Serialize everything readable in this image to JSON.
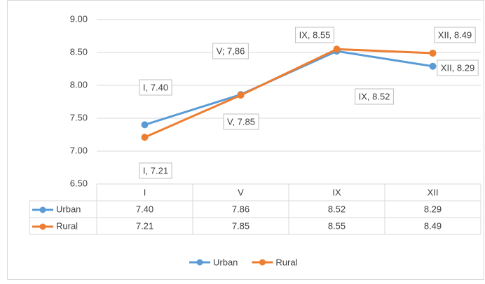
{
  "chart_data": {
    "type": "line",
    "categories": [
      "I",
      "V",
      "IX",
      "XII"
    ],
    "series": [
      {
        "name": "Urban",
        "color": "#5b9bd5",
        "values": [
          7.4,
          7.86,
          8.52,
          8.29
        ],
        "value_labels": [
          "I, 7.40",
          "V; 7,86",
          "IX, 8.52",
          "XII, 8.29"
        ],
        "table_labels": [
          "7.40",
          "7.86",
          "8.52",
          "8.29"
        ]
      },
      {
        "name": "Rural",
        "color": "#ed7d31",
        "values": [
          7.21,
          7.85,
          8.55,
          8.49
        ],
        "value_labels": [
          "I, 7.21",
          "V, 7.85",
          "IX, 8.55",
          "XII, 8.49"
        ],
        "table_labels": [
          "7.21",
          "7.85",
          "8.55",
          "8.49"
        ]
      }
    ],
    "ylim": [
      6.5,
      9.0
    ],
    "yticks": [
      {
        "value": 6.5,
        "label": "6.50"
      },
      {
        "value": 7.0,
        "label": "7.00"
      },
      {
        "value": 7.5,
        "label": "7.50"
      },
      {
        "value": 8.0,
        "label": "8.00"
      },
      {
        "value": 8.5,
        "label": "8.50"
      },
      {
        "value": 9.0,
        "label": "9.00"
      }
    ],
    "grid": true,
    "legend": "bottom"
  }
}
